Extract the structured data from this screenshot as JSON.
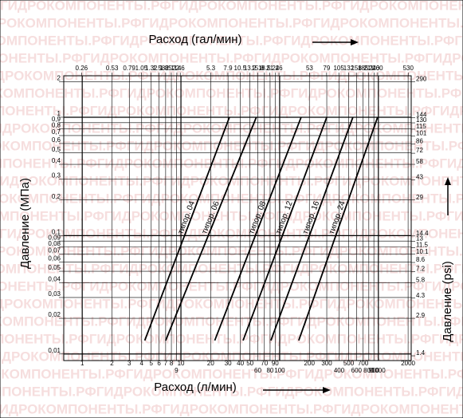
{
  "chart_data": {
    "type": "line",
    "watermark": "ГИДРОКОМПОНЕНТЫ.РФ",
    "x_label": "Расход (л/мин)",
    "x2_label": "Расход (гал/мин)",
    "y_label": "Давление (МПа)",
    "y2_label": "Давление (psi)",
    "log_x": true,
    "log_y": true,
    "grid": true,
    "xlim": [
      0.65,
      2150
    ],
    "xticks": [
      1,
      2,
      3,
      4,
      5,
      6,
      7,
      8,
      9,
      10,
      20,
      30,
      40,
      50,
      60,
      70,
      80,
      90,
      100,
      200,
      300,
      400,
      500,
      600,
      700,
      800,
      900,
      1000,
      2000
    ],
    "x2lim": [
      0.1717,
      568
    ],
    "x2ticks": [
      0.26,
      0.53,
      0.79,
      1.05,
      1.32,
      1.58,
      1.85,
      2.11,
      2.4,
      2.6,
      5.3,
      7.9,
      10.5,
      13.2,
      15.8,
      18.5,
      21,
      24,
      26,
      53,
      79,
      105,
      132,
      158,
      185,
      211,
      240,
      260,
      530
    ],
    "ylim": [
      0.0088,
      2.24
    ],
    "yticks": [
      2,
      1,
      {
        "value": 0.9,
        "label": "0,9"
      },
      {
        "value": 0.8,
        "label": "0,8"
      },
      {
        "value": 0.7,
        "label": "0,7"
      },
      {
        "value": 0.6,
        "label": "0,6"
      },
      {
        "value": 0.5,
        "label": "0,5"
      },
      {
        "value": 0.4,
        "label": "0,4"
      },
      {
        "value": 0.3,
        "label": "0,3"
      },
      {
        "value": 0.2,
        "label": "0,2"
      },
      {
        "value": 0.1,
        "label": "0,1"
      },
      {
        "value": 0.09,
        "label": "0,09"
      },
      {
        "value": 0.08,
        "label": "0,08"
      },
      {
        "value": 0.07,
        "label": "0,07"
      },
      {
        "value": 0.06,
        "label": "0,06"
      },
      {
        "value": 0.05,
        "label": "0,05"
      },
      {
        "value": 0.04,
        "label": "0,04"
      },
      {
        "value": 0.03,
        "label": "0,03"
      },
      {
        "value": 0.02,
        "label": "0,02"
      },
      {
        "value": 0.01,
        "label": "0,01"
      }
    ],
    "y2lim": [
      1.276,
      324.8
    ],
    "y2ticks": [
      290,
      144,
      130,
      115,
      101,
      86,
      72,
      58,
      43,
      29,
      14.4,
      13,
      11.5,
      10.1,
      8.6,
      7.2,
      5.8,
      4.3,
      2.9,
      1.4
    ],
    "series": [
      {
        "name": "типор. 04",
        "color": "#000000",
        "x": [
          4.3,
          31
        ],
        "values": [
          0.013,
          1
        ]
      },
      {
        "name": "типор. 06",
        "color": "#000000",
        "x": [
          7,
          58
        ],
        "values": [
          0.013,
          1
        ]
      },
      {
        "name": "типор. 08",
        "color": "#000000",
        "x": [
          22,
          165
        ],
        "values": [
          0.013,
          1
        ]
      },
      {
        "name": "типор. 12",
        "color": "#000000",
        "x": [
          42.6,
          300
        ],
        "values": [
          0.013,
          1
        ]
      },
      {
        "name": "типор. 16",
        "color": "#000000",
        "x": [
          81.5,
          552
        ],
        "values": [
          0.013,
          1
        ]
      },
      {
        "name": "типор. 24",
        "color": "#000000",
        "x": [
          156,
          982
        ],
        "values": [
          0.013,
          1
        ]
      }
    ]
  }
}
